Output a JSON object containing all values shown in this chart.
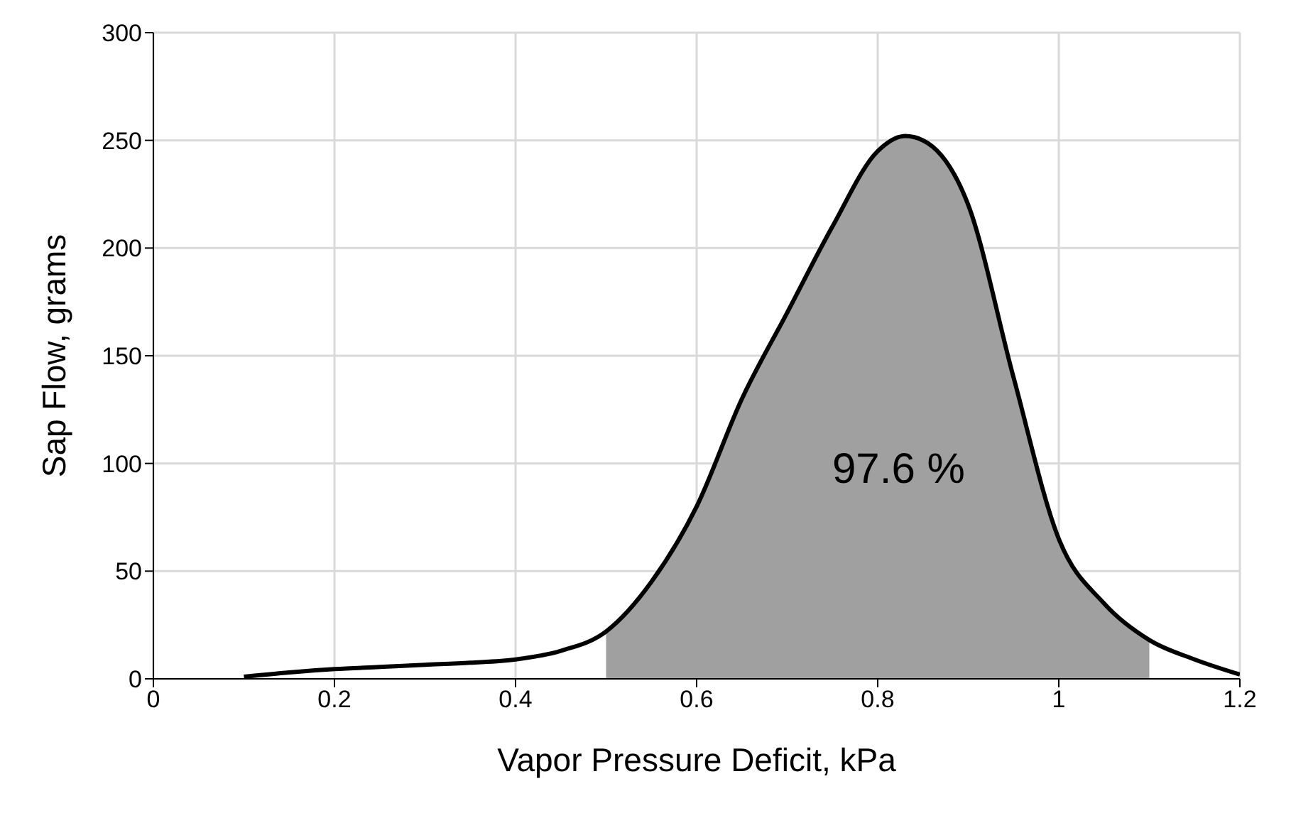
{
  "chart_data": {
    "type": "line",
    "xlabel": "Vapor Pressure Deficit, kPa",
    "ylabel": "Sap Flow, grams",
    "x": [
      0.1,
      0.15,
      0.2,
      0.25,
      0.3,
      0.35,
      0.4,
      0.45,
      0.5,
      0.55,
      0.6,
      0.65,
      0.7,
      0.75,
      0.8,
      0.83,
      0.85,
      0.9,
      0.95,
      1.0,
      1.05,
      1.1,
      1.15,
      1.2
    ],
    "series": [
      {
        "type": "area",
        "color": "#a0a0a0",
        "values": [
          null,
          null,
          null,
          null,
          null,
          null,
          null,
          null,
          22,
          45,
          80,
          130,
          170,
          210,
          245,
          252,
          250,
          220,
          140,
          65,
          35,
          18,
          null,
          null
        ]
      },
      {
        "color": "#000000",
        "values": [
          1,
          3,
          4.5,
          5.5,
          6.5,
          7.5,
          9,
          13,
          22,
          45,
          80,
          130,
          170,
          210,
          245,
          252,
          250,
          220,
          140,
          65,
          35,
          18,
          9,
          2
        ]
      }
    ],
    "xlim": [
      0,
      1.2
    ],
    "xticks": [
      0,
      0.2,
      0.4,
      0.6,
      0.8,
      1,
      1.2
    ],
    "ylim": [
      0,
      300
    ],
    "yticks": [
      0,
      50,
      100,
      150,
      200,
      250,
      300
    ],
    "grid": true,
    "marker": "none",
    "line_style": "solid",
    "annotations": [
      "97.6 %"
    ]
  }
}
